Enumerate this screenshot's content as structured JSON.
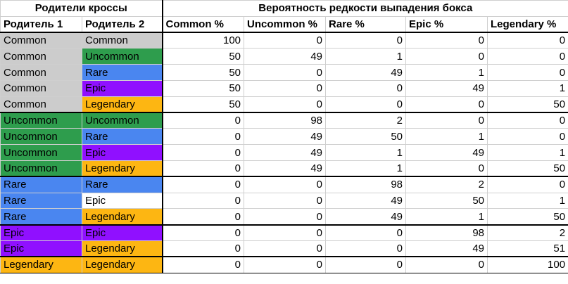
{
  "header": {
    "parents_group": "Родители кроссы",
    "probability_group": "Вероятность редкости выпадения бокса",
    "columns": [
      "Родитель 1",
      "Родитель 2",
      "Common %",
      "Uncommon %",
      "Rare %",
      "Epic %",
      "Legendary %"
    ]
  },
  "colors": {
    "Common": "#cccccc",
    "Uncommon": "#2e9d4d",
    "Rare": "#4a86f0",
    "Epic": "#9010ff",
    "Legendary": "#fdb612",
    "white": "#ffffff"
  },
  "rows": [
    {
      "p1": "Common",
      "p1_color": "Common",
      "p2": "Common",
      "p2_color": "Common",
      "values": [
        100,
        0,
        0,
        0,
        0
      ]
    },
    {
      "p1": "Common",
      "p1_color": "Common",
      "p2": "Uncommon",
      "p2_color": "Uncommon",
      "values": [
        50,
        49,
        1,
        0,
        0
      ]
    },
    {
      "p1": "Common",
      "p1_color": "Common",
      "p2": "Rare",
      "p2_color": "Rare",
      "values": [
        50,
        0,
        49,
        1,
        0
      ]
    },
    {
      "p1": "Common",
      "p1_color": "Common",
      "p2": "Epic",
      "p2_color": "Epic",
      "values": [
        50,
        0,
        0,
        49,
        1
      ]
    },
    {
      "p1": "Common",
      "p1_color": "Common",
      "p2": "Legendary",
      "p2_color": "Legendary",
      "values": [
        50,
        0,
        0,
        0,
        50
      ]
    },
    {
      "p1": "Uncommon",
      "p1_color": "Uncommon",
      "p2": "Uncommon",
      "p2_color": "Uncommon",
      "values": [
        0,
        98,
        2,
        0,
        0
      ]
    },
    {
      "p1": "Uncommon",
      "p1_color": "Uncommon",
      "p2": "Rare",
      "p2_color": "Rare",
      "values": [
        0,
        49,
        50,
        1,
        0
      ]
    },
    {
      "p1": "Uncommon",
      "p1_color": "Uncommon",
      "p2": "Epic",
      "p2_color": "Epic",
      "values": [
        0,
        49,
        1,
        49,
        1
      ]
    },
    {
      "p1": "Uncommon",
      "p1_color": "Uncommon",
      "p2": "Legendary",
      "p2_color": "Legendary",
      "values": [
        0,
        49,
        1,
        0,
        50
      ]
    },
    {
      "p1": "Rare",
      "p1_color": "Rare",
      "p2": "Rare",
      "p2_color": "Rare",
      "values": [
        0,
        0,
        98,
        2,
        0
      ]
    },
    {
      "p1": "Rare",
      "p1_color": "Rare",
      "p2": "Epic",
      "p2_color": "white",
      "values": [
        0,
        0,
        49,
        50,
        1
      ]
    },
    {
      "p1": "Rare",
      "p1_color": "Rare",
      "p2": "Legendary",
      "p2_color": "Legendary",
      "values": [
        0,
        0,
        49,
        1,
        50
      ]
    },
    {
      "p1": "Epic",
      "p1_color": "Epic",
      "p2": "Epic",
      "p2_color": "Epic",
      "values": [
        0,
        0,
        0,
        98,
        2
      ]
    },
    {
      "p1": "Epic",
      "p1_color": "Epic",
      "p2": "Legendary",
      "p2_color": "Legendary",
      "values": [
        0,
        0,
        0,
        49,
        51
      ]
    },
    {
      "p1": "Legendary",
      "p1_color": "Legendary",
      "p2": "Legendary",
      "p2_color": "Legendary",
      "values": [
        0,
        0,
        0,
        0,
        100
      ]
    }
  ]
}
